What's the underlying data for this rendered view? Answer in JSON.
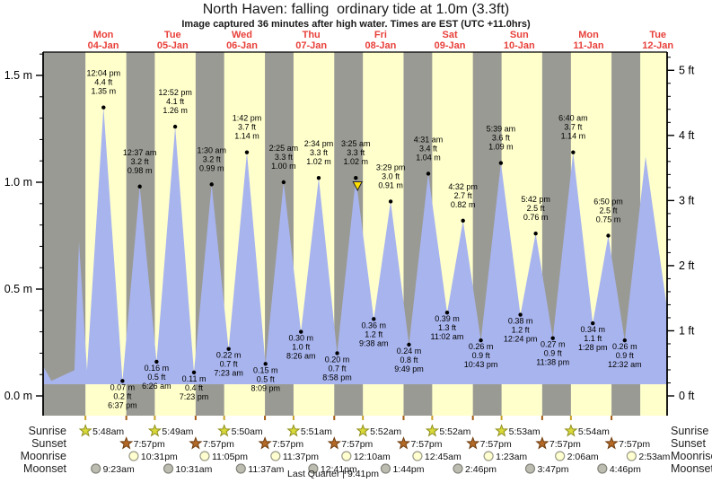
{
  "chart_data": {
    "type": "area",
    "title": "North Haven: falling  ordinary tide at 1.0m (3.3ft)",
    "subtitle": "Image captured 36 minutes after high water. Times are EST (UTC +11.0hrs)",
    "y_axis_left": {
      "unit": "m",
      "major_ticks": [
        0.0,
        0.5,
        1.0,
        1.5
      ],
      "minor_step": 0.1,
      "range_m": [
        -0.09,
        1.61
      ]
    },
    "y_axis_right": {
      "unit": "ft",
      "major_ticks": [
        0,
        1,
        2,
        3,
        4,
        5
      ],
      "minor_step": 0.2
    },
    "days": [
      {
        "weekday": "Mon",
        "date": "04-Jan"
      },
      {
        "weekday": "Tue",
        "date": "05-Jan"
      },
      {
        "weekday": "Wed",
        "date": "06-Jan"
      },
      {
        "weekday": "Thu",
        "date": "07-Jan"
      },
      {
        "weekday": "Fri",
        "date": "08-Jan"
      },
      {
        "weekday": "Sat",
        "date": "09-Jan"
      },
      {
        "weekday": "Sun",
        "date": "10-Jan"
      },
      {
        "weekday": "Mon",
        "date": "11-Jan"
      },
      {
        "weekday": "Tue",
        "date": "12-Jan"
      }
    ],
    "tides": [
      {
        "kind": "edge",
        "day": -1,
        "time": "2:50 pm",
        "m": "0.14"
      },
      {
        "kind": "edge",
        "day": -1,
        "time": "6:00 pm",
        "m": "0.07"
      },
      {
        "kind": "edge",
        "day": 0,
        "time": "2:00 am",
        "m": "0.12"
      },
      {
        "kind": "edge",
        "day": 0,
        "time": "3:35 am",
        "m": "0.72"
      },
      {
        "kind": "edge",
        "day": 0,
        "time": "6:20 am",
        "m": "0.12"
      },
      {
        "kind": "high",
        "day": 0,
        "time": "12:04 pm",
        "ft": "4.4",
        "m": "1.35"
      },
      {
        "kind": "low",
        "day": 0,
        "time": "6:37 pm",
        "ft": "0.2",
        "m": "0.07"
      },
      {
        "kind": "high",
        "day": 1,
        "time": "12:37 am",
        "ft": "3.2",
        "m": "0.98"
      },
      {
        "kind": "low",
        "day": 1,
        "time": "6:26 am",
        "ft": "0.5",
        "m": "0.16"
      },
      {
        "kind": "high",
        "day": 1,
        "time": "12:52 pm",
        "ft": "4.1",
        "m": "1.26"
      },
      {
        "kind": "low",
        "day": 1,
        "time": "7:23 pm",
        "ft": "0.4",
        "m": "0.11"
      },
      {
        "kind": "high",
        "day": 2,
        "time": "1:30 am",
        "ft": "3.2",
        "m": "0.99"
      },
      {
        "kind": "low",
        "day": 2,
        "time": "7:23 am",
        "ft": "0.7",
        "m": "0.22"
      },
      {
        "kind": "high",
        "day": 2,
        "time": "1:42 pm",
        "ft": "3.7",
        "m": "1.14"
      },
      {
        "kind": "low",
        "day": 2,
        "time": "8:09 pm",
        "ft": "0.5",
        "m": "0.15"
      },
      {
        "kind": "high",
        "day": 3,
        "time": "2:25 am",
        "ft": "3.3",
        "m": "1.00"
      },
      {
        "kind": "low",
        "day": 3,
        "time": "8:26 am",
        "ft": "1.0",
        "m": "0.30"
      },
      {
        "kind": "high",
        "day": 3,
        "time": "2:34 pm",
        "ft": "3.3",
        "m": "1.02"
      },
      {
        "kind": "low",
        "day": 3,
        "time": "8:58 pm",
        "ft": "0.7",
        "m": "0.20"
      },
      {
        "kind": "high",
        "day": 4,
        "time": "3:25 am",
        "ft": "3.3",
        "m": "1.02"
      },
      {
        "kind": "low",
        "day": 4,
        "time": "9:38 am",
        "ft": "1.2",
        "m": "0.36"
      },
      {
        "kind": "high",
        "day": 4,
        "time": "3:29 pm",
        "ft": "3.0",
        "m": "0.91"
      },
      {
        "kind": "low",
        "day": 4,
        "time": "9:49 pm",
        "ft": "0.8",
        "m": "0.24"
      },
      {
        "kind": "high",
        "day": 5,
        "time": "4:31 am",
        "ft": "3.4",
        "m": "1.04"
      },
      {
        "kind": "low",
        "day": 5,
        "time": "11:02 am",
        "ft": "1.3",
        "m": "0.39"
      },
      {
        "kind": "high",
        "day": 5,
        "time": "4:32 pm",
        "ft": "2.7",
        "m": "0.82"
      },
      {
        "kind": "low",
        "day": 5,
        "time": "10:43 pm",
        "ft": "0.9",
        "m": "0.26"
      },
      {
        "kind": "high",
        "day": 6,
        "time": "5:39 am",
        "ft": "3.6",
        "m": "1.09"
      },
      {
        "kind": "low",
        "day": 6,
        "time": "12:24 pm",
        "ft": "1.2",
        "m": "0.38"
      },
      {
        "kind": "high",
        "day": 6,
        "time": "5:42 pm",
        "ft": "2.5",
        "m": "0.76"
      },
      {
        "kind": "low",
        "day": 6,
        "time": "11:38 pm",
        "ft": "0.9",
        "m": "0.27"
      },
      {
        "kind": "high",
        "day": 7,
        "time": "6:40 am",
        "ft": "3.7",
        "m": "1.14"
      },
      {
        "kind": "low",
        "day": 7,
        "time": "1:28 pm",
        "ft": "1.1",
        "m": "0.34"
      },
      {
        "kind": "high",
        "day": 7,
        "time": "6:50 pm",
        "ft": "2.5",
        "m": "0.75"
      },
      {
        "kind": "low",
        "day": 8,
        "time": "12:32 am",
        "ft": "0.9",
        "m": "0.26"
      },
      {
        "kind": "edge",
        "day": 8,
        "time": "7:45 am",
        "m": "1.12"
      },
      {
        "kind": "edge",
        "day": 8,
        "time": "3:05 pm",
        "m": "0.42"
      }
    ],
    "current_marker": {
      "day": 4,
      "time": "4:01 am",
      "level_m": 1.0
    },
    "sun_moon": {
      "rows": [
        {
          "key": "sunrise",
          "label": "Sunrise",
          "icon": "sunrise-star",
          "times": [
            {
              "day": 0,
              "time": "5:48am"
            },
            {
              "day": 1,
              "time": "5:49am"
            },
            {
              "day": 2,
              "time": "5:50am"
            },
            {
              "day": 3,
              "time": "5:51am"
            },
            {
              "day": 4,
              "time": "5:52am"
            },
            {
              "day": 5,
              "time": "5:52am"
            },
            {
              "day": 6,
              "time": "5:53am"
            },
            {
              "day": 7,
              "time": "5:54am"
            }
          ]
        },
        {
          "key": "sunset",
          "label": "Sunset",
          "icon": "sunset-star",
          "times": [
            {
              "day": 0,
              "time": "7:57pm"
            },
            {
              "day": 1,
              "time": "7:57pm"
            },
            {
              "day": 2,
              "time": "7:57pm"
            },
            {
              "day": 3,
              "time": "7:57pm"
            },
            {
              "day": 4,
              "time": "7:57pm"
            },
            {
              "day": 5,
              "time": "7:57pm"
            },
            {
              "day": 6,
              "time": "7:57pm"
            },
            {
              "day": 7,
              "time": "7:57pm"
            }
          ]
        },
        {
          "key": "moonrise",
          "label": "Moonrise",
          "icon": "moonrise-circle",
          "times": [
            {
              "day": 0,
              "time": "10:31pm"
            },
            {
              "day": 1,
              "time": "11:05pm"
            },
            {
              "day": 2,
              "time": "11:37pm"
            },
            {
              "day": 4,
              "time": "12:10am"
            },
            {
              "day": 5,
              "time": "12:45am"
            },
            {
              "day": 6,
              "time": "1:23am"
            },
            {
              "day": 7,
              "time": "2:06am"
            },
            {
              "day": 8,
              "time": "2:53am"
            }
          ]
        },
        {
          "key": "moonset",
          "label": "Moonset",
          "icon": "moonset-circle",
          "times": [
            {
              "day": 0,
              "time": "9:23am"
            },
            {
              "day": 1,
              "time": "10:31am"
            },
            {
              "day": 2,
              "time": "11:37am"
            },
            {
              "day": 3,
              "time": "12:41pm"
            },
            {
              "day": 4,
              "time": "1:44pm"
            },
            {
              "day": 5,
              "time": "2:46pm"
            },
            {
              "day": 6,
              "time": "3:47pm"
            },
            {
              "day": 7,
              "time": "4:46pm"
            }
          ]
        }
      ],
      "footer": "Last Quarter | 9:41pm"
    },
    "colors": {
      "night_band": "#9a9a94",
      "day_band": "#ffffcc",
      "water": "#a8b4ee",
      "axis": "#000000",
      "day_label": "#e8403a",
      "annotation": "#000000",
      "marker": "#ffdf00",
      "sunrise_star": "#d9d93a",
      "sunrise_star_edge": "#8f8f1f",
      "sunset_star": "#b46a26",
      "sunset_star_edge": "#6f3d10",
      "moonrise_circle": "#ffffd0",
      "moonrise_circle_edge": "#9a9a8a",
      "moonset_circle": "#bcbcb0",
      "moonset_circle_edge": "#84847c",
      "row_label": "#222222"
    }
  }
}
